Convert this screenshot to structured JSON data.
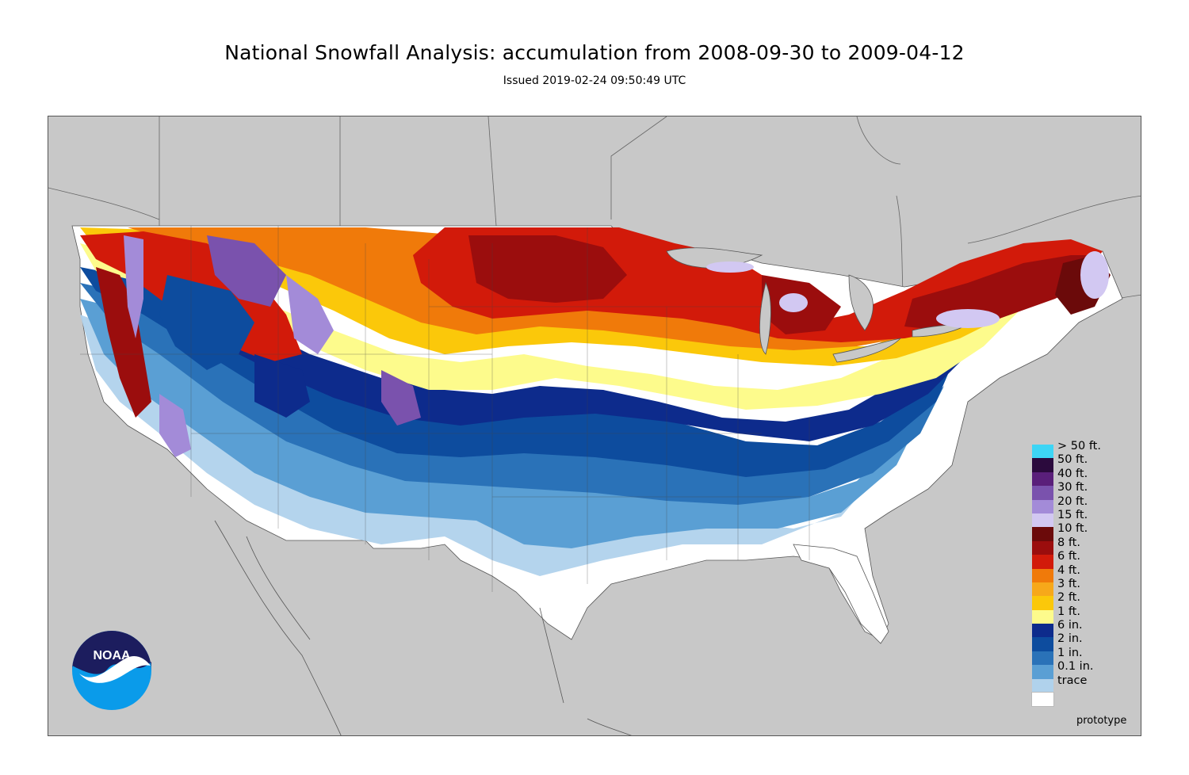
{
  "header": {
    "title": "National Snowfall Analysis: accumulation from 2008-09-30 to 2009-04-12",
    "subtitle": "Issued 2019-02-24 09:50:49 UTC"
  },
  "map": {
    "region": "Contiguous United States",
    "background_color": "#c8c8c8",
    "watermark": "prototype"
  },
  "legend": {
    "items": [
      {
        "label": "> 50 ft.",
        "color": "#3dd5f5"
      },
      {
        "label": "50 ft.",
        "color": "#2b0a3d"
      },
      {
        "label": "40 ft.",
        "color": "#5a1f7a"
      },
      {
        "label": "30 ft.",
        "color": "#7a52ad"
      },
      {
        "label": "20 ft.",
        "color": "#a38bd8"
      },
      {
        "label": "15 ft.",
        "color": "#d2c8f2"
      },
      {
        "label": "10 ft.",
        "color": "#6b0a0a"
      },
      {
        "label": "8 ft.",
        "color": "#9b0d0d"
      },
      {
        "label": "6 ft.",
        "color": "#d21a0a"
      },
      {
        "label": "4 ft.",
        "color": "#f07a0a"
      },
      {
        "label": "3 ft.",
        "color": "#f7a81a"
      },
      {
        "label": "2 ft.",
        "color": "#fbc80a"
      },
      {
        "label": "1 ft.",
        "color": "#fdfb8c"
      },
      {
        "label": "6 in.",
        "color": "#0d2b8c"
      },
      {
        "label": "2 in.",
        "color": "#0d4c9e"
      },
      {
        "label": "1 in.",
        "color": "#2a72b8"
      },
      {
        "label": "0.1 in.",
        "color": "#5a9fd4"
      },
      {
        "label": "trace",
        "color": "#b0d2ec"
      },
      {
        "label": "",
        "color": "#ffffff"
      }
    ]
  },
  "logo": {
    "name": "noaa-logo",
    "text": "NOAA"
  }
}
